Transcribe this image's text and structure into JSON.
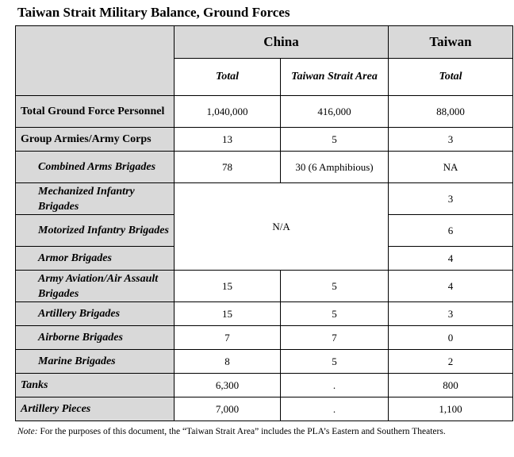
{
  "title": "Taiwan Strait Military Balance, Ground Forces",
  "header": {
    "china": "China",
    "taiwan": "Taiwan",
    "china_total": "Total",
    "china_strait": "Taiwan Strait Area",
    "taiwan_total": "Total"
  },
  "rows": [
    {
      "label": "Total Ground Force Personnel",
      "china_total": "1,040,000",
      "china_strait": "416,000",
      "taiwan_total": "88,000"
    },
    {
      "label": "Group Armies/Army Corps",
      "china_total": "13",
      "china_strait": "5",
      "taiwan_total": "3"
    },
    {
      "label": "Combined Arms Brigades",
      "china_total": "78",
      "china_strait": "30 (6 Amphibious)",
      "taiwan_total": "NA"
    },
    {
      "label": "Mechanized Infantry Brigades",
      "china_merged": "N/A",
      "taiwan_total": "3"
    },
    {
      "label": "Motorized Infantry Brigades",
      "taiwan_total": "6"
    },
    {
      "label": "Armor Brigades",
      "taiwan_total": "4"
    },
    {
      "label": "Army Aviation/Air Assault Brigades",
      "china_total": "15",
      "china_strait": "5",
      "taiwan_total": "4"
    },
    {
      "label": "Artillery Brigades",
      "china_total": "15",
      "china_strait": "5",
      "taiwan_total": "3"
    },
    {
      "label": "Airborne Brigades",
      "china_total": "7",
      "china_strait": "7",
      "taiwan_total": "0"
    },
    {
      "label": "Marine Brigades",
      "china_total": "8",
      "china_strait": "5",
      "taiwan_total": "2"
    },
    {
      "label": "Tanks",
      "china_total": "6,300",
      "china_strait": ".",
      "taiwan_total": "800"
    },
    {
      "label": "Artillery Pieces",
      "china_total": "7,000",
      "china_strait": ".",
      "taiwan_total": "1,100"
    }
  ],
  "note": {
    "prefix": "Note:",
    "text": " For the purposes of this document, the “Taiwan Strait Area” includes the PLA’s Eastern and Southern Theaters."
  }
}
